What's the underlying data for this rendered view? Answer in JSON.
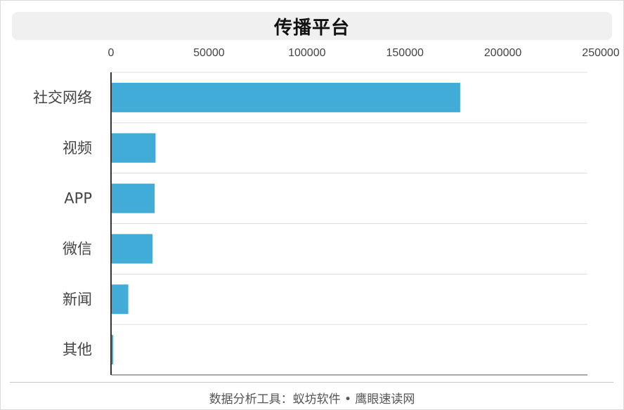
{
  "header": {
    "title": "传播平台"
  },
  "footer": {
    "source": "数据分析工具：蚁坊软件 • 鹰眼速读网"
  },
  "colors": {
    "bar": "#41acd8",
    "axis": "#333333",
    "grid": "#dcdcdc",
    "text": "#444444"
  },
  "chart_data": {
    "type": "bar",
    "orientation": "horizontal",
    "title": "传播平台",
    "categories": [
      "社交网络",
      "视频",
      "APP",
      "微信",
      "新闻",
      "其他"
    ],
    "values": [
      192000,
      24500,
      24000,
      22800,
      9500,
      1200
    ],
    "xticks": [
      "0",
      "50000",
      "100000",
      "150000",
      "200000",
      "250000"
    ],
    "xlim": [
      0,
      250000
    ],
    "xaxis_position": "top",
    "legend": "none",
    "grid": true
  }
}
